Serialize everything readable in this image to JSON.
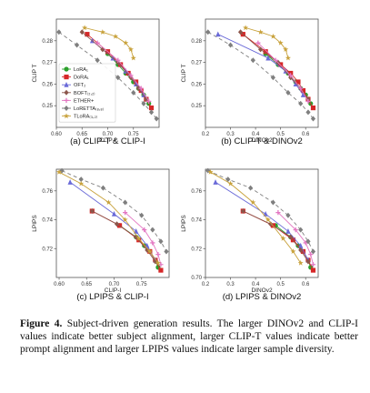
{
  "caption": {
    "label": "Figure 4.",
    "text": "Subject-driven generation results. The larger DINOv2 and CLIP-I values indicate better subject alignment, larger CLIP-T values indicate better prompt alignment and larger LPIPS values indicate larger sample diversity."
  },
  "legend": {
    "entries": [
      {
        "label": "LoRA₁",
        "color": "#2ca02c",
        "marker": "circle"
      },
      {
        "label": "DoRA₁",
        "color": "#d62728",
        "marker": "square"
      },
      {
        "label": "OFT₂",
        "color": "#6a6ad8",
        "marker": "triangle"
      },
      {
        "label": "BOFT₍₂,₂₎",
        "color": "#8c564b",
        "marker": "diamond"
      },
      {
        "label": "ETHER+",
        "color": "#e377c2",
        "marker": "plus"
      },
      {
        "label": "LoRETTA₍₈,₈₎",
        "color": "#7f7f7f",
        "marker": "diamond"
      },
      {
        "label": "TLoRA₍₃,₂₎",
        "color": "#c8a23c",
        "marker": "star"
      }
    ]
  },
  "chart_data": [
    {
      "id": "a",
      "type": "line",
      "title": "(a) CLIP-T & CLIP-I",
      "xlabel": "CLIP-I",
      "ylabel": "CLIP T",
      "xlim": [
        0.6,
        0.8
      ],
      "ylim": [
        0.24,
        0.29
      ],
      "xticks": [
        {
          "v": 0.6,
          "t": "0.60"
        },
        {
          "v": 0.65,
          "t": "0.65"
        },
        {
          "v": 0.7,
          "t": "0.70"
        },
        {
          "v": 0.75,
          "t": "0.75"
        }
      ],
      "yticks": [
        {
          "v": 0.25,
          "t": "0.25"
        },
        {
          "v": 0.26,
          "t": "0.26"
        },
        {
          "v": 0.27,
          "t": "0.27"
        },
        {
          "v": 0.28,
          "t": "0.28"
        }
      ],
      "legend": true,
      "series": [
        {
          "name": "LoRA₁",
          "x": [
            0.7,
            0.72,
            0.735,
            0.75,
            0.76,
            0.77,
            0.78
          ],
          "y": [
            0.274,
            0.269,
            0.265,
            0.261,
            0.258,
            0.255,
            0.251
          ]
        },
        {
          "name": "DoRA₁",
          "x": [
            0.66,
            0.7,
            0.725,
            0.74,
            0.755,
            0.765,
            0.775,
            0.785
          ],
          "y": [
            0.283,
            0.275,
            0.269,
            0.265,
            0.261,
            0.257,
            0.253,
            0.249
          ]
        },
        {
          "name": "OFT₂",
          "x": [
            0.67,
            0.71,
            0.735,
            0.755,
            0.77
          ],
          "y": [
            0.28,
            0.272,
            0.266,
            0.26,
            0.255
          ]
        },
        {
          "name": "BOFT₍₂,₂₎",
          "x": [
            0.65,
            0.69,
            0.72,
            0.745,
            0.76,
            0.775
          ],
          "y": [
            0.284,
            0.276,
            0.27,
            0.263,
            0.258,
            0.253
          ]
        },
        {
          "name": "ETHER+",
          "x": [
            0.68,
            0.72,
            0.745,
            0.765,
            0.78
          ],
          "y": [
            0.279,
            0.271,
            0.264,
            0.258,
            0.252
          ]
        },
        {
          "name": "LoRETTA₍₈,₈₎",
          "x": [
            0.605,
            0.64,
            0.68,
            0.72,
            0.75,
            0.77,
            0.785,
            0.795
          ],
          "y": [
            0.284,
            0.278,
            0.271,
            0.263,
            0.256,
            0.251,
            0.247,
            0.244
          ]
        },
        {
          "name": "TLoRA₍₃,₂₎",
          "x": [
            0.655,
            0.69,
            0.715,
            0.735,
            0.745,
            0.75
          ],
          "y": [
            0.286,
            0.284,
            0.282,
            0.279,
            0.276,
            0.272
          ]
        }
      ]
    },
    {
      "id": "b",
      "type": "line",
      "title": "(b) CLIP-T & DINOv2",
      "xlabel": "DINOv2",
      "ylabel": "CLIP T",
      "xlim": [
        0.2,
        0.65
      ],
      "ylim": [
        0.24,
        0.29
      ],
      "xticks": [
        {
          "v": 0.2,
          "t": "0.2"
        },
        {
          "v": 0.3,
          "t": "0.3"
        },
        {
          "v": 0.4,
          "t": "0.4"
        },
        {
          "v": 0.5,
          "t": "0.5"
        },
        {
          "v": 0.6,
          "t": "0.6"
        }
      ],
      "yticks": [
        {
          "v": 0.25,
          "t": "0.25"
        },
        {
          "v": 0.26,
          "t": "0.26"
        },
        {
          "v": 0.27,
          "t": "0.27"
        },
        {
          "v": 0.28,
          "t": "0.28"
        }
      ],
      "legend": false,
      "series": [
        {
          "name": "LoRA₁",
          "x": [
            0.44,
            0.49,
            0.53,
            0.56,
            0.58,
            0.6,
            0.62
          ],
          "y": [
            0.274,
            0.269,
            0.265,
            0.261,
            0.258,
            0.255,
            0.251
          ]
        },
        {
          "name": "DoRA₁",
          "x": [
            0.35,
            0.44,
            0.5,
            0.54,
            0.57,
            0.59,
            0.61,
            0.63
          ],
          "y": [
            0.283,
            0.275,
            0.269,
            0.265,
            0.261,
            0.257,
            0.253,
            0.249
          ]
        },
        {
          "name": "OFT₂",
          "x": [
            0.25,
            0.45,
            0.52,
            0.56,
            0.59
          ],
          "y": [
            0.283,
            0.272,
            0.266,
            0.26,
            0.255
          ]
        },
        {
          "name": "BOFT₍₂,₂₎",
          "x": [
            0.34,
            0.42,
            0.49,
            0.54,
            0.58,
            0.61
          ],
          "y": [
            0.284,
            0.276,
            0.27,
            0.263,
            0.258,
            0.253
          ]
        },
        {
          "name": "ETHER+",
          "x": [
            0.41,
            0.48,
            0.54,
            0.58,
            0.61
          ],
          "y": [
            0.279,
            0.271,
            0.264,
            0.258,
            0.252
          ]
        },
        {
          "name": "LoRETTA₍₈,₈₎",
          "x": [
            0.21,
            0.3,
            0.39,
            0.47,
            0.53,
            0.58,
            0.61,
            0.63
          ],
          "y": [
            0.284,
            0.278,
            0.271,
            0.263,
            0.256,
            0.251,
            0.247,
            0.244
          ]
        },
        {
          "name": "TLoRA₍₃,₂₎",
          "x": [
            0.36,
            0.42,
            0.47,
            0.5,
            0.52,
            0.53
          ],
          "y": [
            0.286,
            0.284,
            0.282,
            0.279,
            0.276,
            0.272
          ]
        }
      ]
    },
    {
      "id": "c",
      "type": "line",
      "title": "(c) LPIPS & CLIP-I",
      "xlabel": "CLIP-I",
      "ylabel": "LPIPS",
      "xlim": [
        0.595,
        0.8
      ],
      "ylim": [
        0.7,
        0.775
      ],
      "xticks": [
        {
          "v": 0.6,
          "t": "0.60"
        },
        {
          "v": 0.65,
          "t": "0.65"
        },
        {
          "v": 0.7,
          "t": "0.70"
        },
        {
          "v": 0.75,
          "t": "0.75"
        }
      ],
      "yticks": [
        {
          "v": 0.72,
          "t": "0.72"
        },
        {
          "v": 0.74,
          "t": "0.74"
        },
        {
          "v": 0.76,
          "t": "0.76"
        }
      ],
      "legend": false,
      "series": [
        {
          "name": "LoRA₁",
          "x": [
            0.71,
            0.74,
            0.755,
            0.765,
            0.775,
            0.78
          ],
          "y": [
            0.736,
            0.728,
            0.722,
            0.718,
            0.712,
            0.707
          ]
        },
        {
          "name": "DoRA₁",
          "x": [
            0.66,
            0.71,
            0.745,
            0.765,
            0.775,
            0.785
          ],
          "y": [
            0.746,
            0.736,
            0.726,
            0.718,
            0.712,
            0.705
          ]
        },
        {
          "name": "OFT₂",
          "x": [
            0.62,
            0.7,
            0.74,
            0.76,
            0.775
          ],
          "y": [
            0.766,
            0.744,
            0.732,
            0.722,
            0.712
          ]
        },
        {
          "name": "BOFT₍₂,₂₎",
          "x": [
            0.66,
            0.705,
            0.74,
            0.76,
            0.775
          ],
          "y": [
            0.746,
            0.737,
            0.728,
            0.719,
            0.711
          ]
        },
        {
          "name": "ETHER+",
          "x": [
            0.72,
            0.755,
            0.77,
            0.78,
            0.785
          ],
          "y": [
            0.745,
            0.733,
            0.724,
            0.716,
            0.709
          ]
        },
        {
          "name": "LoRETTA₍₈,₈₎",
          "x": [
            0.605,
            0.64,
            0.68,
            0.72,
            0.75,
            0.77,
            0.785,
            0.795
          ],
          "y": [
            0.774,
            0.768,
            0.762,
            0.752,
            0.743,
            0.733,
            0.725,
            0.718
          ]
        },
        {
          "name": "TLoRA₍₃,₂₎",
          "x": [
            0.6,
            0.64,
            0.69,
            0.72,
            0.745,
            0.765,
            0.78
          ],
          "y": [
            0.773,
            0.765,
            0.752,
            0.74,
            0.727,
            0.718,
            0.71
          ]
        }
      ]
    },
    {
      "id": "d",
      "type": "line",
      "title": "(d) LPIPS & DINOv2",
      "xlabel": "DINOv2",
      "ylabel": "LPIPS",
      "xlim": [
        0.2,
        0.65
      ],
      "ylim": [
        0.7,
        0.775
      ],
      "xticks": [
        {
          "v": 0.2,
          "t": "0.2"
        },
        {
          "v": 0.3,
          "t": "0.3"
        },
        {
          "v": 0.4,
          "t": "0.4"
        },
        {
          "v": 0.5,
          "t": "0.5"
        },
        {
          "v": 0.6,
          "t": "0.6"
        }
      ],
      "yticks": [
        {
          "v": 0.7,
          "t": "0.70"
        },
        {
          "v": 0.72,
          "t": "0.72"
        },
        {
          "v": 0.74,
          "t": "0.74"
        },
        {
          "v": 0.76,
          "t": "0.76"
        }
      ],
      "legend": false,
      "series": [
        {
          "name": "LoRA₁",
          "x": [
            0.48,
            0.54,
            0.57,
            0.59,
            0.61,
            0.62
          ],
          "y": [
            0.736,
            0.728,
            0.722,
            0.718,
            0.712,
            0.707
          ]
        },
        {
          "name": "DoRA₁",
          "x": [
            0.35,
            0.47,
            0.55,
            0.59,
            0.61,
            0.63
          ],
          "y": [
            0.746,
            0.736,
            0.726,
            0.718,
            0.712,
            0.705
          ]
        },
        {
          "name": "OFT₂",
          "x": [
            0.24,
            0.44,
            0.53,
            0.58,
            0.61
          ],
          "y": [
            0.766,
            0.744,
            0.732,
            0.722,
            0.712
          ]
        },
        {
          "name": "BOFT₍₂,₂₎",
          "x": [
            0.35,
            0.46,
            0.54,
            0.58,
            0.61
          ],
          "y": [
            0.746,
            0.737,
            0.728,
            0.719,
            0.711
          ]
        },
        {
          "name": "ETHER+",
          "x": [
            0.49,
            0.56,
            0.6,
            0.62,
            0.63
          ],
          "y": [
            0.745,
            0.733,
            0.724,
            0.716,
            0.709
          ]
        },
        {
          "name": "LoRETTA₍₈,₈₎",
          "x": [
            0.21,
            0.29,
            0.38,
            0.47,
            0.53,
            0.58,
            0.61,
            0.63
          ],
          "y": [
            0.774,
            0.768,
            0.762,
            0.752,
            0.743,
            0.733,
            0.725,
            0.718
          ]
        },
        {
          "name": "TLoRA₍₃,₂₎",
          "x": [
            0.22,
            0.3,
            0.39,
            0.45,
            0.51,
            0.55,
            0.58
          ],
          "y": [
            0.773,
            0.765,
            0.752,
            0.74,
            0.727,
            0.718,
            0.71
          ]
        }
      ]
    }
  ]
}
